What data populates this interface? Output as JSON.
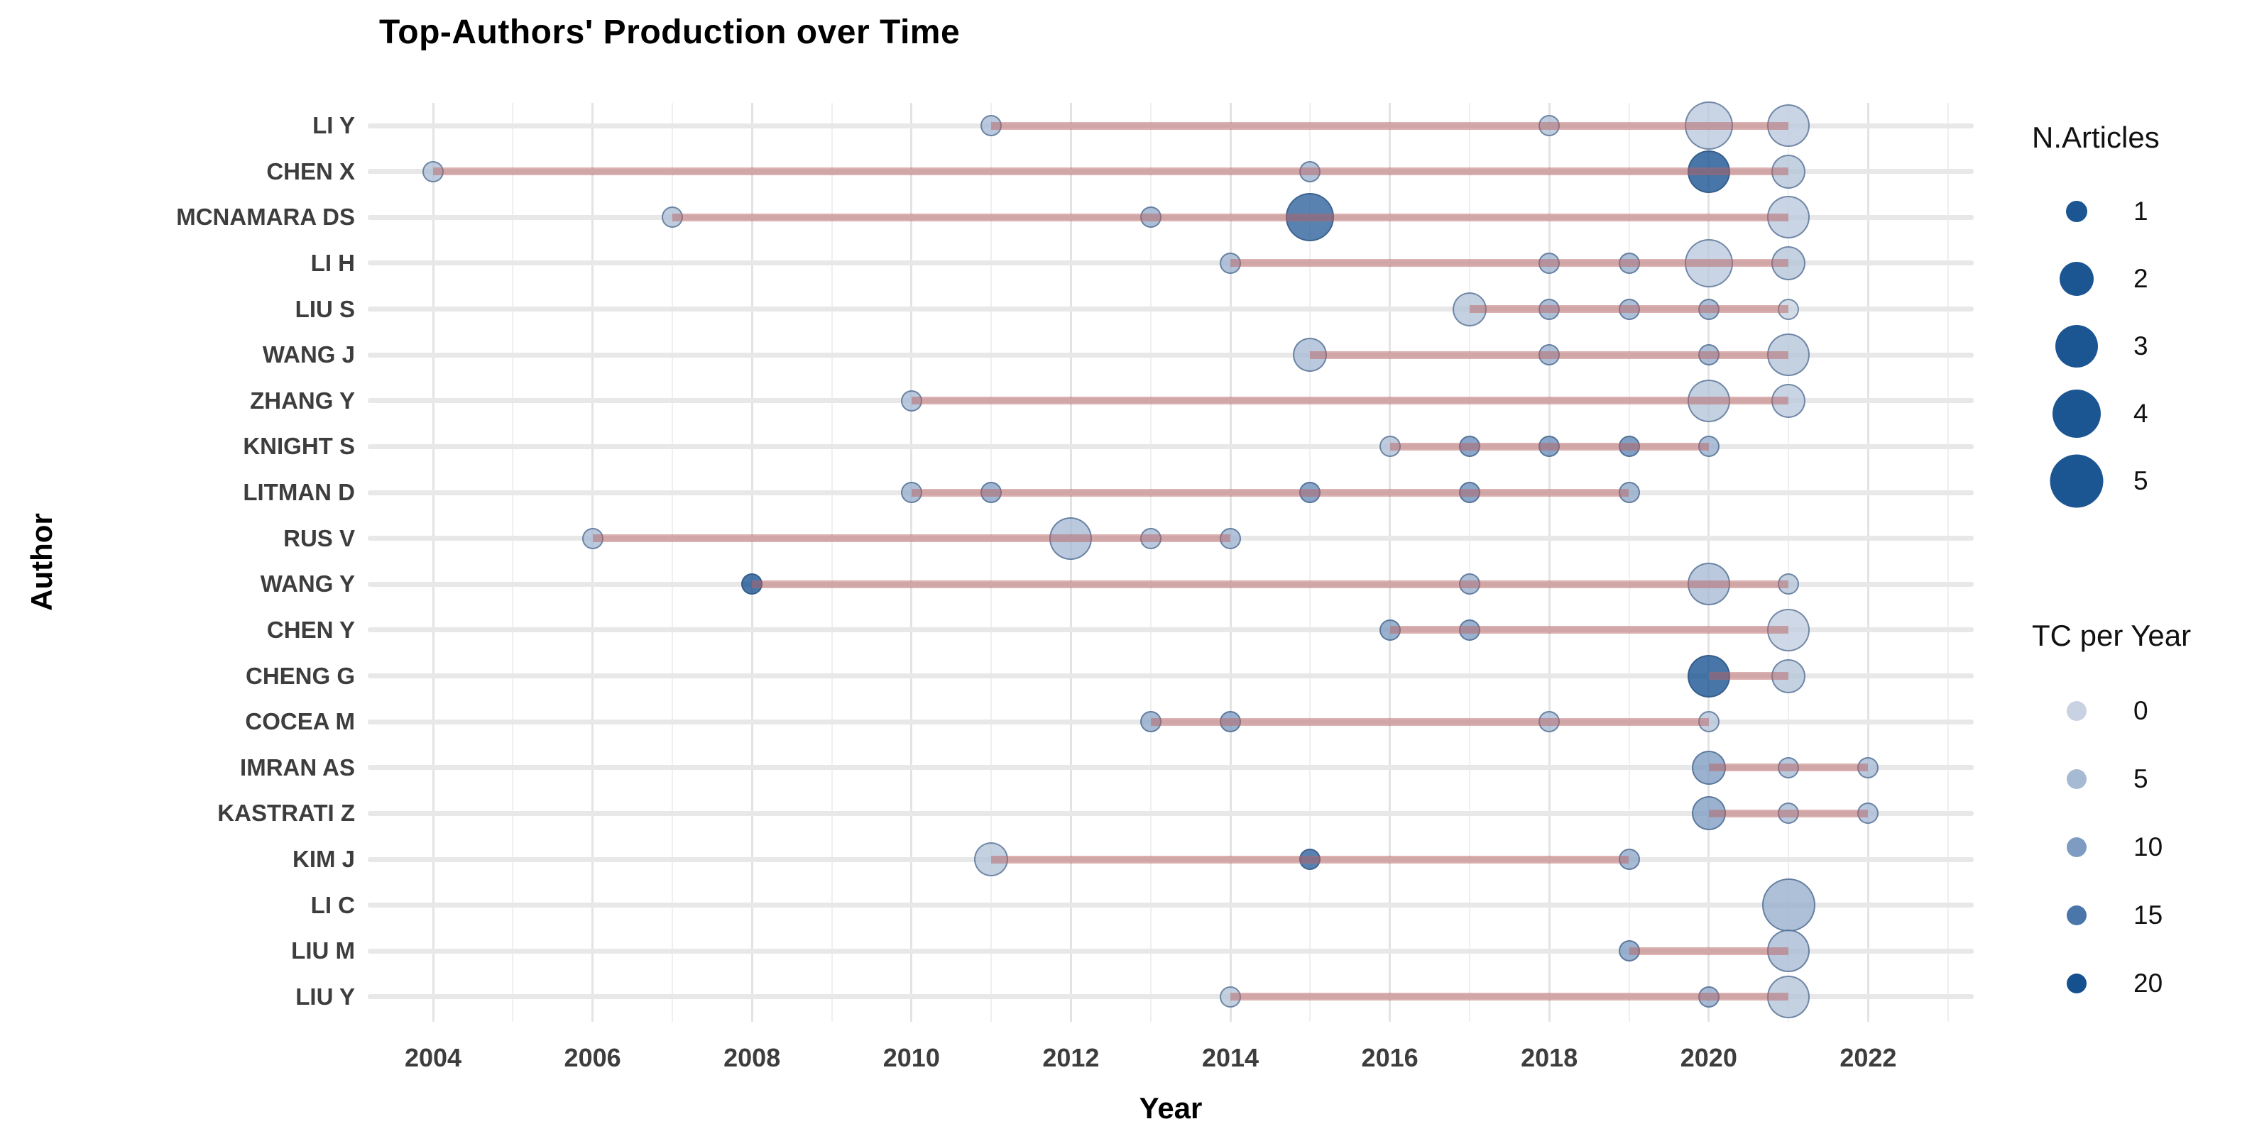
{
  "title": "Top-Authors' Production over Time",
  "axes": {
    "x_label": "Year",
    "y_label": "Author",
    "x_ticks": [
      2004,
      2006,
      2008,
      2010,
      2012,
      2014,
      2016,
      2018,
      2020,
      2022
    ]
  },
  "legend": {
    "size_legend": {
      "title": "N.Articles",
      "items": [
        1,
        2,
        3,
        4,
        5
      ]
    },
    "color_legend": {
      "title": "TC per Year",
      "items": [
        0,
        5,
        10,
        15,
        20
      ]
    }
  },
  "colors": {
    "bubble_dark": "#15508F",
    "bubble_light": "#C8D2E2",
    "size_legend_dot": "#1B5693",
    "trend_line": "rgba(186,100,100,0.50)",
    "grid_major": "#e3e3e3",
    "grid_minor": "#efefef",
    "row_line": "#e8e8e8",
    "tc_color_stops": {
      "0": "#C8D2E2",
      "5": "#A6BAD3",
      "10": "#7E9CC2",
      "15": "#4A76AA",
      "20": "#15508F"
    }
  },
  "chart_data": {
    "type": "scatter",
    "subtype": "bubble-timeline",
    "title": "Top-Authors' Production over Time",
    "xlabel": "Year",
    "ylabel": "Author",
    "x_range": [
      2003.3,
      2023.3
    ],
    "grid": true,
    "legend_position": "right",
    "size_variable": "N.Articles",
    "color_variable": "TC per Year",
    "authors": [
      {
        "name": "LI Y",
        "line": [
          2011,
          2021
        ],
        "points": [
          {
            "year": 2011,
            "n": 1,
            "tc": 5
          },
          {
            "year": 2018,
            "n": 1,
            "tc": 4
          },
          {
            "year": 2020,
            "n": 4,
            "tc": 2
          },
          {
            "year": 2021,
            "n": 3,
            "tc": 2
          }
        ]
      },
      {
        "name": "CHEN X",
        "line": [
          2004,
          2021
        ],
        "points": [
          {
            "year": 2004,
            "n": 1,
            "tc": 4
          },
          {
            "year": 2015,
            "n": 1,
            "tc": 6
          },
          {
            "year": 2020,
            "n": 3,
            "tc": 20
          },
          {
            "year": 2021,
            "n": 2,
            "tc": 3
          }
        ]
      },
      {
        "name": "MCNAMARA DS",
        "line": [
          2007,
          2021
        ],
        "points": [
          {
            "year": 2007,
            "n": 1,
            "tc": 4
          },
          {
            "year": 2013,
            "n": 1,
            "tc": 7
          },
          {
            "year": 2015,
            "n": 4,
            "tc": 18
          },
          {
            "year": 2021,
            "n": 3,
            "tc": 2
          }
        ]
      },
      {
        "name": "LI H",
        "line": [
          2014,
          2021
        ],
        "points": [
          {
            "year": 2014,
            "n": 1,
            "tc": 6
          },
          {
            "year": 2018,
            "n": 1,
            "tc": 6
          },
          {
            "year": 2019,
            "n": 1,
            "tc": 7
          },
          {
            "year": 2020,
            "n": 4,
            "tc": 2
          },
          {
            "year": 2021,
            "n": 2,
            "tc": 3
          }
        ]
      },
      {
        "name": "LIU S",
        "line": [
          2017,
          2021
        ],
        "points": [
          {
            "year": 2017,
            "n": 2,
            "tc": 3
          },
          {
            "year": 2018,
            "n": 1,
            "tc": 7
          },
          {
            "year": 2019,
            "n": 1,
            "tc": 7
          },
          {
            "year": 2020,
            "n": 1,
            "tc": 7
          },
          {
            "year": 2021,
            "n": 1,
            "tc": 0
          }
        ]
      },
      {
        "name": "WANG J",
        "line": [
          2015,
          2021
        ],
        "points": [
          {
            "year": 2015,
            "n": 2,
            "tc": 5
          },
          {
            "year": 2018,
            "n": 1,
            "tc": 7
          },
          {
            "year": 2020,
            "n": 1,
            "tc": 7
          },
          {
            "year": 2021,
            "n": 3,
            "tc": 3
          }
        ]
      },
      {
        "name": "ZHANG Y",
        "line": [
          2010,
          2021
        ],
        "points": [
          {
            "year": 2010,
            "n": 1,
            "tc": 5
          },
          {
            "year": 2020,
            "n": 3,
            "tc": 3
          },
          {
            "year": 2021,
            "n": 2,
            "tc": 2
          }
        ]
      },
      {
        "name": "KNIGHT S",
        "line": [
          2016,
          2020
        ],
        "points": [
          {
            "year": 2016,
            "n": 1,
            "tc": 4
          },
          {
            "year": 2017,
            "n": 1,
            "tc": 12
          },
          {
            "year": 2018,
            "n": 1,
            "tc": 12
          },
          {
            "year": 2019,
            "n": 1,
            "tc": 13
          },
          {
            "year": 2020,
            "n": 1,
            "tc": 7
          }
        ]
      },
      {
        "name": "LITMAN D",
        "line": [
          2010,
          2019
        ],
        "points": [
          {
            "year": 2010,
            "n": 1,
            "tc": 7
          },
          {
            "year": 2011,
            "n": 1,
            "tc": 9
          },
          {
            "year": 2015,
            "n": 1,
            "tc": 12
          },
          {
            "year": 2017,
            "n": 1,
            "tc": 12
          },
          {
            "year": 2019,
            "n": 1,
            "tc": 8
          }
        ]
      },
      {
        "name": "RUS V",
        "line": [
          2006,
          2014
        ],
        "points": [
          {
            "year": 2006,
            "n": 1,
            "tc": 5
          },
          {
            "year": 2012,
            "n": 3,
            "tc": 5
          },
          {
            "year": 2013,
            "n": 1,
            "tc": 5
          },
          {
            "year": 2014,
            "n": 1,
            "tc": 6
          }
        ]
      },
      {
        "name": "WANG Y",
        "line": [
          2008,
          2021
        ],
        "points": [
          {
            "year": 2008,
            "n": 1,
            "tc": 20
          },
          {
            "year": 2017,
            "n": 1,
            "tc": 7
          },
          {
            "year": 2020,
            "n": 3,
            "tc": 5
          },
          {
            "year": 2021,
            "n": 1,
            "tc": 3
          }
        ]
      },
      {
        "name": "CHEN Y",
        "line": [
          2016,
          2021
        ],
        "points": [
          {
            "year": 2016,
            "n": 1,
            "tc": 10
          },
          {
            "year": 2017,
            "n": 1,
            "tc": 10
          },
          {
            "year": 2021,
            "n": 3,
            "tc": 1
          }
        ]
      },
      {
        "name": "CHENG G",
        "line": [
          2020,
          2021
        ],
        "points": [
          {
            "year": 2020,
            "n": 3,
            "tc": 20
          },
          {
            "year": 2021,
            "n": 2,
            "tc": 3
          }
        ]
      },
      {
        "name": "COCEA M",
        "line": [
          2013,
          2020
        ],
        "points": [
          {
            "year": 2013,
            "n": 1,
            "tc": 8
          },
          {
            "year": 2014,
            "n": 1,
            "tc": 10
          },
          {
            "year": 2018,
            "n": 1,
            "tc": 5
          },
          {
            "year": 2020,
            "n": 1,
            "tc": 3
          }
        ]
      },
      {
        "name": "IMRAN AS",
        "line": [
          2020,
          2022
        ],
        "points": [
          {
            "year": 2020,
            "n": 2,
            "tc": 10
          },
          {
            "year": 2021,
            "n": 1,
            "tc": 5
          },
          {
            "year": 2022,
            "n": 1,
            "tc": 5
          }
        ]
      },
      {
        "name": "KASTRATI Z",
        "line": [
          2020,
          2022
        ],
        "points": [
          {
            "year": 2020,
            "n": 2,
            "tc": 10
          },
          {
            "year": 2021,
            "n": 1,
            "tc": 5
          },
          {
            "year": 2022,
            "n": 1,
            "tc": 5
          }
        ]
      },
      {
        "name": "KIM J",
        "line": [
          2011,
          2019
        ],
        "points": [
          {
            "year": 2011,
            "n": 2,
            "tc": 3
          },
          {
            "year": 2015,
            "n": 1,
            "tc": 18
          },
          {
            "year": 2019,
            "n": 1,
            "tc": 8
          }
        ]
      },
      {
        "name": "LI C",
        "line": [
          2021,
          2021
        ],
        "points": [
          {
            "year": 2021,
            "n": 5,
            "tc": 7
          }
        ]
      },
      {
        "name": "LIU M",
        "line": [
          2019,
          2021
        ],
        "points": [
          {
            "year": 2019,
            "n": 1,
            "tc": 10
          },
          {
            "year": 2021,
            "n": 3,
            "tc": 5
          }
        ]
      },
      {
        "name": "LIU Y",
        "line": [
          2014,
          2021
        ],
        "points": [
          {
            "year": 2014,
            "n": 1,
            "tc": 3
          },
          {
            "year": 2020,
            "n": 1,
            "tc": 8
          },
          {
            "year": 2021,
            "n": 3,
            "tc": 3
          }
        ]
      }
    ]
  }
}
